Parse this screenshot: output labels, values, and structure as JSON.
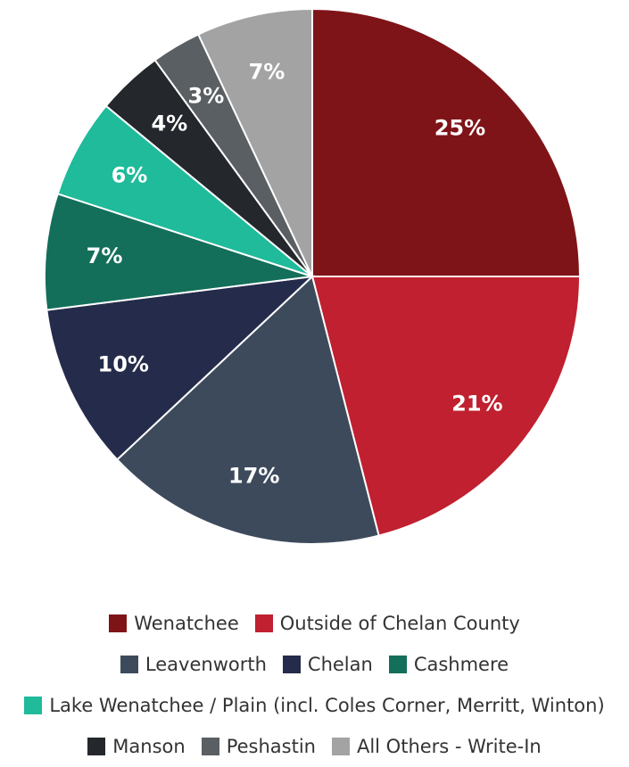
{
  "chart_data": {
    "type": "pie",
    "categories": [
      "Wenatchee",
      "Outside of Chelan County",
      "Leavenworth",
      "Chelan",
      "Cashmere",
      "Lake Wenatchee / Plain (incl. Coles Corner, Merritt, Winton)",
      "Manson",
      "Peshastin",
      "All Others - Write-In"
    ],
    "values": [
      25,
      21,
      17,
      10,
      7,
      6,
      4,
      3,
      7
    ],
    "value_labels": [
      "25%",
      "21%",
      "17%",
      "10%",
      "7%",
      "6%",
      "4%",
      "3%",
      "7%"
    ],
    "colors": [
      "#7f1418",
      "#c0202f",
      "#3d4a5c",
      "#252b4a",
      "#136e5a",
      "#1fbb9a",
      "#24272b",
      "#5a5f63",
      "#a3a3a3"
    ],
    "legend": "bottom"
  }
}
